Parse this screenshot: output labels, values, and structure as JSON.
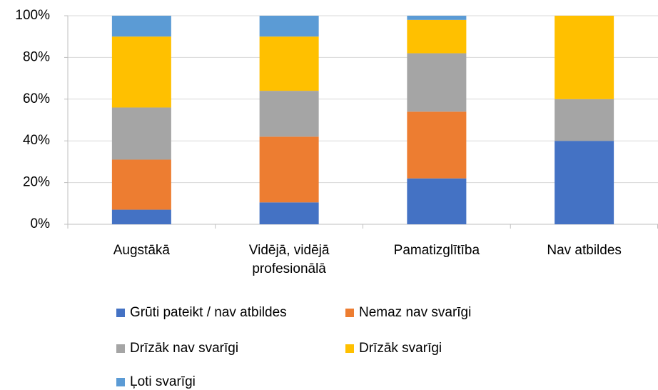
{
  "chart_data": {
    "type": "stacked_bar",
    "categories": [
      "Augstākā",
      "Vidējā, vidējā profesionālā",
      "Pamatizglītība",
      "Nav atbildes"
    ],
    "series": [
      {
        "name": "Grūti pateikt / nav atbildes",
        "color": "#4472c4",
        "values": [
          7,
          10.5,
          22,
          40
        ]
      },
      {
        "name": "Nemaz nav svarīgi",
        "color": "#ed7d31",
        "values": [
          24,
          31.5,
          32,
          0
        ]
      },
      {
        "name": "Drīzāk nav svarīgi",
        "color": "#a5a5a5",
        "values": [
          25,
          22,
          28,
          20
        ]
      },
      {
        "name": "Drīzāk svarīgi",
        "color": "#ffc000",
        "values": [
          34,
          26,
          16,
          40
        ]
      },
      {
        "name": "Ļoti svarīgi",
        "color": "#5b9bd5",
        "values": [
          10,
          10,
          2,
          0
        ]
      }
    ],
    "ylim": [
      0,
      100
    ],
    "yticks": [
      {
        "value": 0,
        "label": "0%"
      },
      {
        "value": 20,
        "label": "20%"
      },
      {
        "value": 40,
        "label": "40%"
      },
      {
        "value": 60,
        "label": "60%"
      },
      {
        "value": 80,
        "label": "80%"
      },
      {
        "value": 100,
        "label": "100%"
      }
    ],
    "grid": true,
    "legend": "bottom"
  }
}
